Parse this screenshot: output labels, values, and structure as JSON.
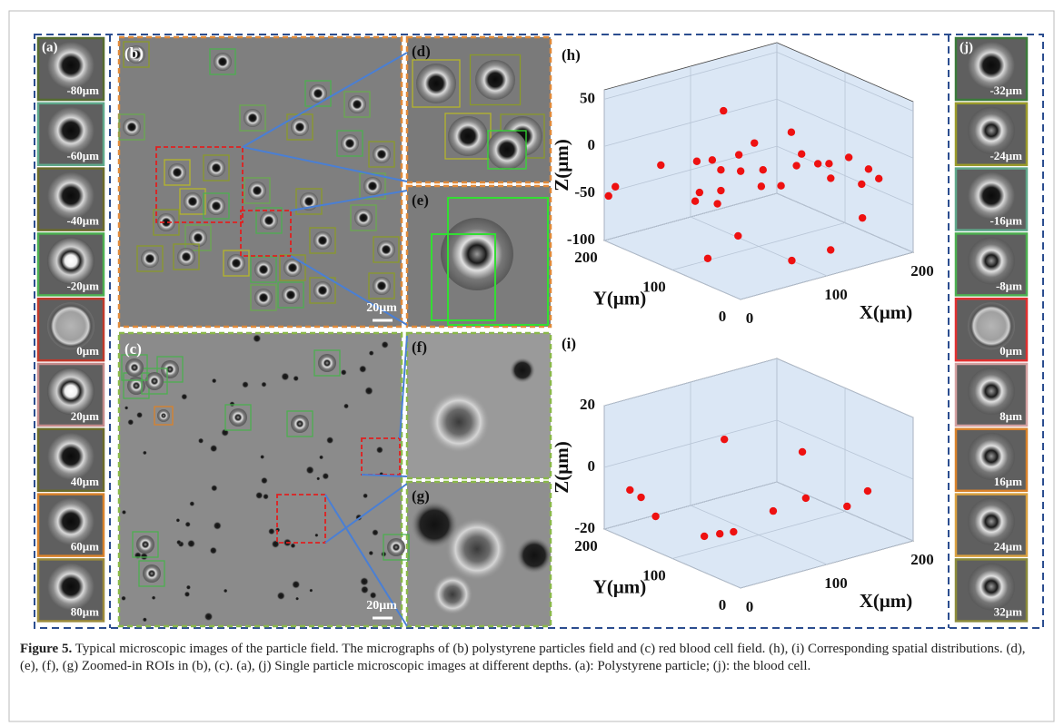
{
  "panels": {
    "a": {
      "label": "(a)",
      "depths": [
        "-80μm",
        "-60μm",
        "-40μm",
        "-20μm",
        "0μm",
        "20μm",
        "40μm",
        "60μm",
        "80μm"
      ]
    },
    "b": {
      "label": "(b)",
      "scale_bar": "20μm"
    },
    "c": {
      "label": "(c)",
      "scale_bar": "20μm"
    },
    "d": {
      "label": "(d)"
    },
    "e": {
      "label": "(e)"
    },
    "f": {
      "label": "(f)"
    },
    "g": {
      "label": "(g)"
    },
    "j": {
      "label": "(j)",
      "depths": [
        "-32μm",
        "-24μm",
        "-16μm",
        "-8μm",
        "0μm",
        "8μm",
        "16μm",
        "24μm",
        "32μm"
      ]
    }
  },
  "chart_data": [
    {
      "type": "scatter3d",
      "label": "(h)",
      "color": "#ee1111",
      "xlabel": "X(μm)",
      "ylabel": "Y(μm)",
      "zlabel": "Z(μm)",
      "xlim": [
        0,
        200
      ],
      "ylim": [
        0,
        200
      ],
      "zlim": [
        -100,
        60
      ],
      "xticks": [
        0,
        100,
        200
      ],
      "yticks": [
        0,
        100,
        200
      ],
      "zticks": [
        -100,
        -50,
        0,
        50
      ],
      "x": [
        5,
        5,
        34,
        75,
        52,
        62,
        77,
        95,
        122,
        126,
        137,
        142,
        157,
        172,
        176,
        105,
        87,
        72,
        63,
        58,
        72,
        103,
        118,
        128,
        144,
        164,
        157,
        84,
        41,
        91,
        136,
        68
      ],
      "y": [
        200,
        190,
        160,
        120,
        130,
        120,
        100,
        100,
        80,
        70,
        60,
        50,
        40,
        30,
        20,
        100,
        110,
        120,
        140,
        140,
        120,
        100,
        90,
        80,
        50,
        30,
        20,
        110,
        100,
        40,
        40,
        120
      ],
      "z": [
        -54,
        -41,
        -16,
        44,
        -7,
        -5,
        3,
        11,
        22,
        1,
        -9,
        -7,
        -1,
        -14,
        -22,
        -20,
        -20,
        -18,
        -46,
        -54,
        -40,
        -37,
        -37,
        -15,
        -23,
        -28,
        -59,
        -88,
        -98,
        -94,
        -94,
        -53
      ]
    },
    {
      "type": "scatter3d",
      "label": "(i)",
      "color": "#ee1111",
      "xlabel": "X(μm)",
      "ylabel": "Y(μm)",
      "zlabel": "Z(μm)",
      "xlim": [
        0,
        200
      ],
      "ylim": [
        0,
        200
      ],
      "zlim": [
        -20,
        20
      ],
      "xticks": [
        0,
        100,
        200
      ],
      "yticks": [
        0,
        100,
        200
      ],
      "zticks": [
        -20,
        0,
        20
      ],
      "x": [
        14,
        19,
        28,
        76,
        119,
        37,
        51,
        63,
        101,
        123,
        155,
        171
      ],
      "y": [
        180,
        170,
        160,
        120,
        60,
        100,
        95,
        90,
        80,
        60,
        40,
        30
      ],
      "z": [
        -6.5,
        -8.3,
        -14.2,
        10.9,
        9.3,
        -15.6,
        -15.4,
        -15.2,
        -10.4,
        -6.0,
        -9.2,
        -4.5
      ]
    }
  ],
  "caption": {
    "label": "Figure 5.",
    "text": "Typical microscopic images of the particle field. The micrographs of (b) polystyrene particles field and (c) red blood cell field. (h), (i) Corresponding spatial distributions. (d), (e), (f), (g) Zoomed-in ROIs in (b), (c). (a), (j) Single particle microscopic images at different depths. (a): Polystyrene particle; (j): the blood cell."
  }
}
